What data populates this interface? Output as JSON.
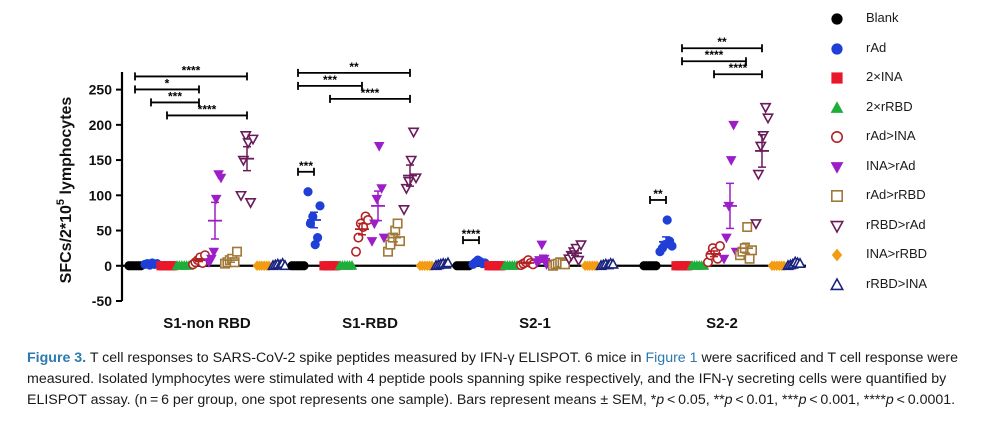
{
  "chart_data": {
    "type": "scatter",
    "ylabel_main": "SFCs/2*10",
    "ylabel_exp": "5",
    "ylabel_tail": " lymphocytes",
    "ylim": [
      -50,
      275
    ],
    "yticks": [
      -50,
      0,
      50,
      100,
      150,
      200,
      250
    ],
    "categories": [
      "S1-non RBD",
      "S1-RBD",
      "S2-1",
      "S2-2"
    ],
    "series": [
      {
        "name": "Blank",
        "color": "#000000",
        "marker": "circle-filled"
      },
      {
        "name": "rAd",
        "color": "#1f3fd6",
        "marker": "circle-filled"
      },
      {
        "name": "2×INA",
        "color": "#e8182a",
        "marker": "square-filled"
      },
      {
        "name": "2×rRBD",
        "color": "#1fae3a",
        "marker": "triangle-up-filled"
      },
      {
        "name": "rAd>INA",
        "color": "#b22222",
        "marker": "circle-open"
      },
      {
        "name": "INA>rAd",
        "color": "#9b1ec9",
        "marker": "triangle-down-filled"
      },
      {
        "name": "rAd>rRBD",
        "color": "#a07838",
        "marker": "square-open"
      },
      {
        "name": "rRBD>rAd",
        "color": "#6a1b5a",
        "marker": "triangle-down-open"
      },
      {
        "name": "INA>rRBD",
        "color": "#f39c12",
        "marker": "diamond-filled"
      },
      {
        "name": "rRBD>INA",
        "color": "#1a237e",
        "marker": "triangle-up-open"
      }
    ],
    "points": [
      [
        [
          0,
          0,
          0,
          0,
          0,
          0
        ],
        [
          2,
          3,
          1,
          4,
          2,
          3
        ],
        [
          0,
          0,
          0,
          0,
          0,
          0
        ],
        [
          0,
          0,
          0,
          0,
          0,
          0
        ],
        [
          2,
          5,
          8,
          12,
          4,
          15
        ],
        [
          5,
          10,
          20,
          95,
          130,
          125
        ],
        [
          3,
          5,
          8,
          10,
          5,
          20
        ],
        [
          100,
          150,
          185,
          175,
          90,
          180
        ],
        [
          0,
          0,
          0,
          0,
          0,
          0
        ],
        [
          0,
          1,
          2,
          1,
          3,
          0
        ]
      ],
      [
        [
          0,
          0,
          0,
          0,
          0,
          0
        ],
        [
          105,
          60,
          70,
          30,
          40,
          85
        ],
        [
          0,
          0,
          0,
          0,
          0,
          0
        ],
        [
          0,
          0,
          0,
          0,
          0,
          0
        ],
        [
          20,
          40,
          60,
          55,
          70,
          65
        ],
        [
          35,
          60,
          95,
          170,
          110,
          40
        ],
        [
          20,
          30,
          40,
          50,
          60,
          35
        ],
        [
          80,
          110,
          120,
          150,
          190,
          125
        ],
        [
          0,
          0,
          0,
          0,
          0,
          0
        ],
        [
          0,
          1,
          2,
          3,
          2,
          4
        ]
      ],
      [
        [
          0,
          0,
          0,
          0,
          0,
          0
        ],
        [
          2,
          5,
          8,
          6,
          3,
          4
        ],
        [
          0,
          0,
          0,
          0,
          0,
          0
        ],
        [
          0,
          0,
          0,
          0,
          0,
          0
        ],
        [
          1,
          3,
          5,
          8,
          4,
          2
        ],
        [
          5,
          8,
          30,
          10,
          2,
          3
        ],
        [
          0,
          2,
          3,
          5,
          4,
          2
        ],
        [
          10,
          15,
          20,
          25,
          8,
          30
        ],
        [
          0,
          0,
          0,
          0,
          0,
          0
        ],
        [
          0,
          1,
          2,
          1,
          3,
          2
        ]
      ],
      [
        [
          0,
          0,
          0,
          0,
          0,
          0
        ],
        [
          20,
          25,
          30,
          65,
          35,
          28
        ],
        [
          0,
          0,
          0,
          0,
          0,
          0
        ],
        [
          0,
          0,
          0,
          0,
          0,
          0
        ],
        [
          5,
          15,
          25,
          20,
          10,
          28
        ],
        [
          10,
          40,
          85,
          150,
          200,
          20
        ],
        [
          15,
          20,
          25,
          55,
          10,
          22
        ],
        [
          60,
          130,
          170,
          185,
          225,
          210
        ],
        [
          0,
          0,
          0,
          0,
          0,
          0
        ],
        [
          0,
          1,
          2,
          5,
          4,
          3
        ]
      ]
    ],
    "error_bars": [
      [
        [
          0,
          0
        ],
        [
          2.5,
          1
        ],
        [
          0,
          0
        ],
        [
          0,
          0
        ],
        [
          8,
          2
        ],
        [
          64,
          26
        ],
        [
          8,
          3
        ],
        [
          152,
          17
        ],
        [
          0,
          0
        ],
        [
          1.5,
          1
        ]
      ],
      [
        [
          0,
          0
        ],
        [
          65,
          11
        ],
        [
          0,
          0
        ],
        [
          0,
          0
        ],
        [
          52,
          8
        ],
        [
          85,
          21
        ],
        [
          40,
          6
        ],
        [
          128,
          15
        ],
        [
          0,
          0
        ],
        [
          2,
          1
        ]
      ],
      [
        [
          0,
          0
        ],
        [
          5,
          1
        ],
        [
          0,
          0
        ],
        [
          0,
          0
        ],
        [
          4,
          1
        ],
        [
          10,
          5
        ],
        [
          3,
          1
        ],
        [
          18,
          3
        ],
        [
          0,
          0
        ],
        [
          1.5,
          1
        ]
      ],
      [
        [
          0,
          0
        ],
        [
          34,
          7
        ],
        [
          0,
          0
        ],
        [
          0,
          0
        ],
        [
          17,
          4
        ],
        [
          85,
          32
        ],
        [
          25,
          7
        ],
        [
          163,
          23
        ],
        [
          0,
          0
        ],
        [
          2.5,
          1
        ]
      ]
    ],
    "significance": [
      {
        "group": 0,
        "from": 0,
        "to": 7,
        "label": "****"
      },
      {
        "group": 0,
        "from": 0,
        "to": 4,
        "label": "*"
      },
      {
        "group": 0,
        "from": 1,
        "to": 4,
        "label": "***"
      },
      {
        "group": 0,
        "from": 2,
        "to": 7,
        "label": "****"
      },
      {
        "group": 1,
        "from": 0,
        "to": 7,
        "label": "**"
      },
      {
        "group": 1,
        "from": 0,
        "to": 4,
        "label": "***"
      },
      {
        "group": 1,
        "from": 2,
        "to": 7,
        "label": "****"
      },
      {
        "group": 1,
        "from": 0,
        "to": 1,
        "label": "***"
      },
      {
        "group": 2,
        "from": 0,
        "to": 1,
        "label": "****"
      },
      {
        "group": 3,
        "from": 2,
        "to": 7,
        "label": "**"
      },
      {
        "group": 3,
        "from": 2,
        "to": 6,
        "label": "****"
      },
      {
        "group": 3,
        "from": 4,
        "to": 7,
        "label": "****"
      },
      {
        "group": 3,
        "from": 0,
        "to": 1,
        "label": "**"
      }
    ]
  },
  "caption": {
    "figure_label": "Figure 3.",
    "text1": " T cell responses to SARS-CoV-2 spike peptides measured by IFN-γ ELISPOT. 6 mice in ",
    "link": "Figure 1",
    "text2": " were sacrificed and T cell response were measured. Isolated lymphocytes were stimulated with 4 peptide pools spanning spike respectively, and the IFN-γ secreting cells were quantified by ELISPOT assay. (n = 6 per group, one spot represents one sample). Bars represent means ± SEM, *",
    "p1": "p",
    "t3": " < 0.05, **",
    "p2": "p",
    "t4": " < 0.01, ***",
    "p3": "p",
    "t5": " < 0.001, ****",
    "p4": "p",
    "t6": " < 0.0001."
  }
}
